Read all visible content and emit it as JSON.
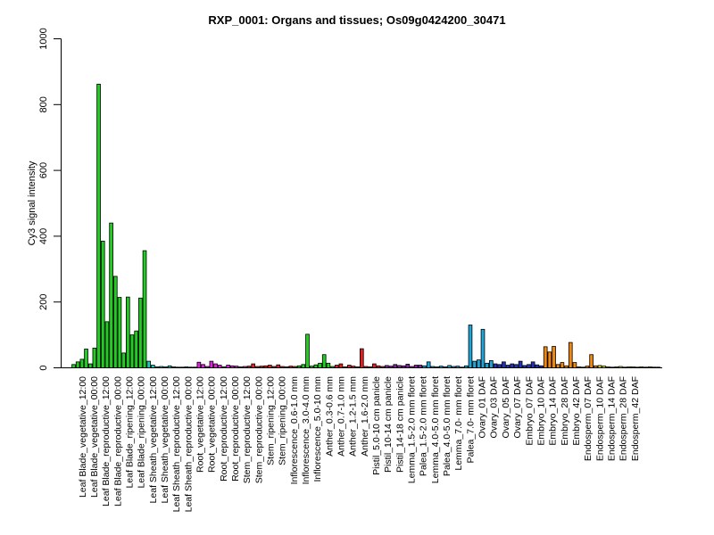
{
  "chart_data": {
    "type": "bar",
    "title": "RXP_0001: Organs and tissues; Os09g0424200_30471",
    "xlabel": "",
    "ylabel": "Cy3 signal intensity",
    "ylim": [
      0,
      1000
    ],
    "yticks": [
      0,
      200,
      400,
      600,
      800,
      1000
    ],
    "grid": false,
    "legend": "none",
    "tick_labels": [
      "Leaf Blade_vegetative_12:00",
      "Leaf Blade_vegetative_00:00",
      "Leaf Blade_reproductive_12:00",
      "Leaf Blade_reproductive_00:00",
      "Leaf Blade_ripening_12:00",
      "Leaf Blade_ripening_00:00",
      "Leaf Sheath_vegetative_12:00",
      "Leaf Sheath_vegetative_00:00",
      "Leaf Sheath_reproductive_12:00",
      "Leaf Sheath_reproductive_00:00",
      "Root_vegetative_12:00",
      "Root_vegetative_00:00",
      "Root_reproductive_12:00",
      "Root_reproductive_00:00",
      "Stem_reproductive_12:00",
      "Stem_reproductive_00:00",
      "Stem_ripening_12:00",
      "Stem_ripening_00:00",
      "Inflorescence_0.6-1.0 mm",
      "Inflorescence_3.0-4.0 mm",
      "Inflorescence_5.0-10 mm",
      "Anther_0.3-0.6 mm",
      "Anther_0.7-1.0 mm",
      "Anther_1.2-1.5 mm",
      "Anther_1.6-2.0 mm",
      "Pistil_5.0-10 cm panicle",
      "Pistil_10-14 cm panicle",
      "Pistil_14-18 cm panicle",
      "Lemma_1.5-2.0 mm floret",
      "Palea_1.5-2.0 mm floret",
      "Lemma_4.0-5.0 mm floret",
      "Palea_4.0-5.0 mm floret",
      "Lemma_7.0- mm floret",
      "Palea_7.0- mm floret",
      "Ovary_01 DAF",
      "Ovary_03 DAF",
      "Ovary_05 DAF",
      "Ovary_07 DAF",
      "Embryo_07 DAF",
      "Embryo_10 DAF",
      "Embryo_14 DAF",
      "Embryo_28 DAF",
      "Embryo_42 DAF",
      "Endosperm_07 DAF",
      "Endosperm_10 DAF",
      "Endosperm_14 DAF",
      "Endosperm_28 DAF",
      "Endosperm_42 DAF"
    ],
    "groups": [
      {
        "color": "#22cc22",
        "values": [
          10,
          18,
          26,
          57,
          12,
          60
        ]
      },
      {
        "color": "#22cc22",
        "values": [
          862,
          385,
          140,
          440,
          278,
          214
        ]
      },
      {
        "color": "#22cc22",
        "values": [
          45,
          215,
          100,
          112,
          212,
          356
        ]
      },
      {
        "color": "#20c8b8",
        "values": [
          20,
          8,
          3,
          4,
          3,
          6
        ]
      },
      {
        "color": "#20c8b8",
        "values": [
          3,
          2,
          2,
          3,
          2,
          2
        ]
      },
      {
        "color": "#dd22dd",
        "values": [
          17,
          10,
          4,
          20,
          12,
          8
        ]
      },
      {
        "color": "#dd22dd",
        "values": [
          3,
          8,
          6,
          5,
          3,
          4
        ]
      },
      {
        "color": "#dd2222",
        "values": [
          5,
          12,
          4,
          5,
          6,
          8
        ]
      },
      {
        "color": "#dd2222",
        "values": [
          4,
          9,
          4,
          3,
          5,
          4
        ]
      },
      {
        "color": "#22cc22",
        "values": [
          6,
          10,
          102,
          5,
          9,
          14
        ]
      },
      {
        "color": "#22cc22",
        "values": [
          40,
          14,
          4
        ]
      },
      {
        "color": "#dd2222",
        "values": [
          8,
          12,
          3,
          8,
          5,
          3,
          58,
          4,
          3,
          12,
          6,
          4
        ]
      },
      {
        "color": "#8822aa",
        "values": [
          7,
          5,
          10,
          7,
          6,
          11,
          4,
          8,
          8
        ]
      },
      {
        "color": "#1fa6d8",
        "values": [
          6,
          18,
          4,
          3,
          5,
          3,
          7,
          4,
          5,
          2,
          6,
          130,
          20,
          24,
          117,
          14,
          22
        ]
      },
      {
        "color": "#2233bb",
        "values": [
          12,
          10,
          18,
          8,
          12,
          10,
          20,
          7,
          10,
          18,
          9,
          6
        ]
      },
      {
        "color": "#ee8811",
        "values": [
          64,
          48,
          65,
          10,
          16,
          6,
          77,
          16,
          3,
          2,
          5,
          40,
          6
        ]
      },
      {
        "color": "#dddd22",
        "values": [
          7,
          5,
          3,
          2,
          3,
          4,
          2,
          3,
          3,
          2,
          3,
          2,
          3,
          2,
          2
        ]
      }
    ]
  }
}
